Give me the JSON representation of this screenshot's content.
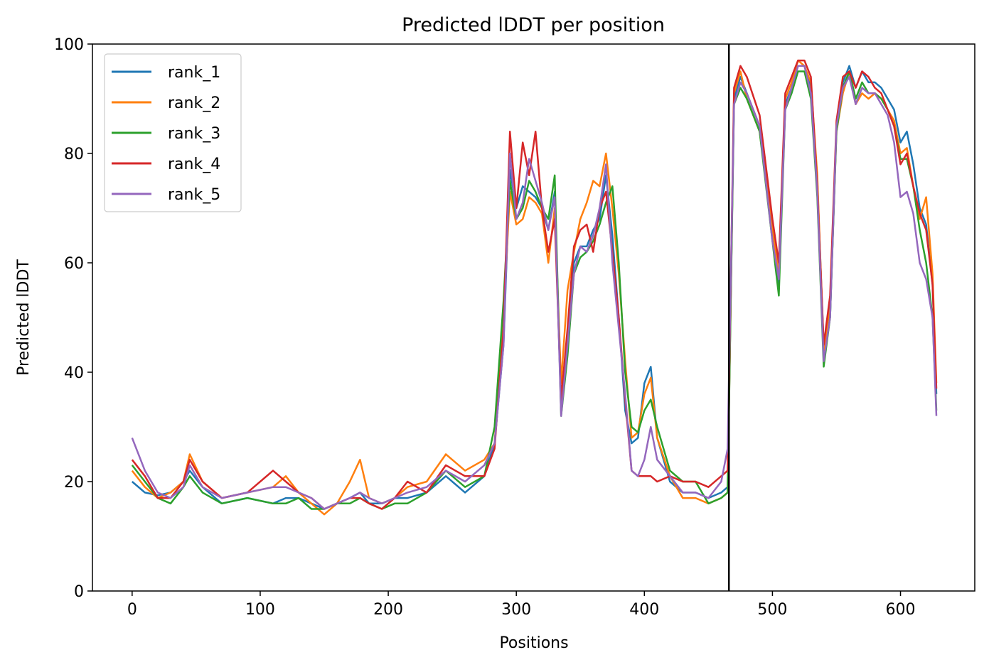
{
  "chart_data": {
    "type": "line",
    "title": "Predicted lDDT per position",
    "xlabel": "Positions",
    "ylabel": "Predicted lDDT",
    "xlim": [
      -31,
      658
    ],
    "ylim": [
      0,
      100
    ],
    "xticks": [
      0,
      100,
      200,
      300,
      400,
      500,
      600
    ],
    "yticks": [
      0,
      20,
      40,
      60,
      80,
      100
    ],
    "grid": false,
    "legend_position": "upper left",
    "vline_x": 466,
    "colors": {
      "rank_1": "#1f77b4",
      "rank_2": "#ff7f0e",
      "rank_3": "#2ca02c",
      "rank_4": "#d62728",
      "rank_5": "#9467bd",
      "vline": "#000000"
    },
    "x": [
      0,
      10,
      20,
      30,
      40,
      45,
      55,
      70,
      90,
      110,
      120,
      130,
      140,
      150,
      160,
      170,
      178,
      185,
      195,
      205,
      215,
      230,
      245,
      260,
      275,
      283,
      290,
      295,
      300,
      305,
      310,
      315,
      320,
      325,
      330,
      335,
      340,
      345,
      350,
      355,
      360,
      365,
      370,
      375,
      380,
      385,
      390,
      395,
      400,
      405,
      410,
      420,
      430,
      440,
      450,
      460,
      465,
      470,
      475,
      480,
      490,
      500,
      505,
      510,
      515,
      520,
      525,
      530,
      535,
      540,
      545,
      550,
      555,
      560,
      565,
      570,
      575,
      580,
      585,
      590,
      595,
      600,
      605,
      610,
      615,
      620,
      625,
      628
    ],
    "series": [
      {
        "name": "rank_1",
        "values": [
          20,
          18,
          17.5,
          18,
          20,
          22,
          19,
          16,
          17,
          16,
          17,
          17,
          16,
          15,
          16,
          17,
          18,
          16,
          16,
          17,
          17,
          18,
          21,
          18,
          21,
          27,
          45,
          77,
          70,
          74,
          73,
          72,
          70,
          66,
          73,
          33,
          45,
          60,
          63,
          63,
          66,
          68,
          76,
          65,
          50,
          33,
          27,
          28,
          38,
          41,
          28,
          20,
          18,
          18,
          17,
          18,
          19,
          90,
          94,
          91,
          85,
          65,
          56,
          89,
          92,
          96,
          96,
          92,
          75,
          45,
          50,
          85,
          93,
          96,
          92,
          95,
          93,
          93,
          92,
          90,
          88,
          82,
          84,
          78,
          70,
          67,
          56,
          36
        ]
      },
      {
        "name": "rank_2",
        "values": [
          22,
          19,
          17,
          18,
          20,
          25,
          20,
          17,
          18,
          19,
          21,
          18,
          16,
          14,
          16,
          20,
          24,
          17,
          16,
          17,
          19,
          20,
          25,
          22,
          24,
          27,
          50,
          73,
          67,
          68,
          72,
          71,
          69,
          60,
          70,
          38,
          55,
          62,
          68,
          71,
          75,
          74,
          80,
          70,
          58,
          42,
          28,
          29,
          36,
          39,
          28,
          21,
          17,
          17,
          16,
          17,
          18,
          91,
          95,
          90,
          84,
          66,
          58,
          90,
          93,
          97,
          96,
          93,
          76,
          44,
          52,
          84,
          91,
          95,
          89,
          91,
          90,
          91,
          90,
          88,
          86,
          80,
          81,
          74,
          68,
          72,
          58,
          38
        ]
      },
      {
        "name": "rank_3",
        "values": [
          23,
          20,
          17,
          16,
          19,
          21,
          18,
          16,
          17,
          16,
          16,
          17,
          15,
          15,
          16,
          16,
          17,
          16,
          15,
          16,
          16,
          18,
          22,
          19,
          21,
          30,
          53,
          75,
          68,
          70,
          75,
          73,
          70,
          68,
          76,
          32,
          43,
          58,
          61,
          62,
          64,
          67,
          71,
          74,
          60,
          40,
          30,
          29,
          33,
          35,
          30,
          22,
          20,
          20,
          16,
          17,
          18,
          89,
          92,
          90,
          84,
          64,
          54,
          88,
          91,
          95,
          95,
          90,
          72,
          41,
          50,
          84,
          92,
          95,
          90,
          93,
          91,
          91,
          90,
          88,
          85,
          79,
          79,
          74,
          66,
          60,
          50,
          33
        ]
      },
      {
        "name": "rank_4",
        "values": [
          24,
          21,
          17,
          17,
          20,
          24,
          20,
          17,
          18,
          22,
          20,
          18,
          17,
          15,
          16,
          17,
          17,
          16,
          15,
          17,
          20,
          18,
          23,
          21,
          21,
          26,
          48,
          84,
          70,
          82,
          76,
          84,
          70,
          62,
          68,
          35,
          48,
          63,
          66,
          67,
          62,
          70,
          73,
          62,
          50,
          35,
          22,
          21,
          21,
          21,
          20,
          21,
          20,
          20,
          19,
          21,
          22,
          92,
          96,
          94,
          87,
          68,
          60,
          91,
          94,
          97,
          97,
          94,
          74,
          45,
          54,
          86,
          94,
          95,
          92,
          95,
          94,
          92,
          91,
          88,
          85,
          78,
          80,
          74,
          69,
          66,
          56,
          37
        ]
      },
      {
        "name": "rank_5",
        "values": [
          28,
          22,
          18,
          17,
          19,
          23,
          19,
          17,
          18,
          19,
          19,
          18,
          17,
          15,
          16,
          17,
          18,
          17,
          16,
          17,
          18,
          19,
          22,
          20,
          23,
          27,
          45,
          80,
          68,
          71,
          79,
          75,
          71,
          66,
          72,
          32,
          45,
          58,
          63,
          62,
          65,
          70,
          78,
          60,
          48,
          36,
          22,
          21,
          24,
          30,
          24,
          21,
          18,
          18,
          17,
          20,
          26,
          89,
          93,
          91,
          85,
          64,
          57,
          88,
          92,
          96,
          96,
          91,
          73,
          42,
          50,
          85,
          92,
          94,
          89,
          92,
          91,
          91,
          89,
          87,
          82,
          72,
          73,
          69,
          60,
          57,
          50,
          32
        ]
      }
    ]
  }
}
